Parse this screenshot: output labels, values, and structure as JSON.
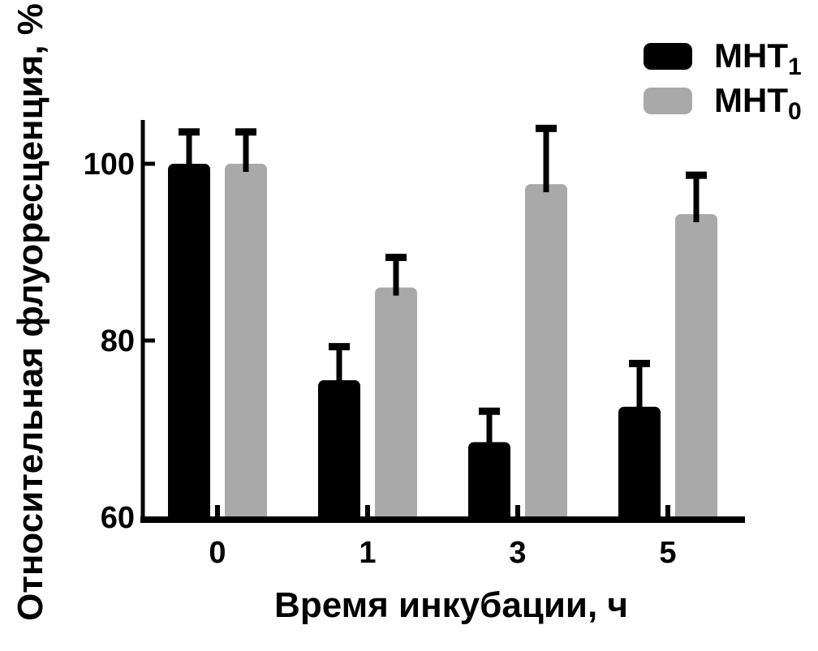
{
  "figure": {
    "background": "#ffffff",
    "axis_color": "#000000"
  },
  "chart_data": {
    "type": "bar",
    "title": "",
    "xlabel": "Время инкубации, ч",
    "ylabel": "Относительная флуоресценция, %",
    "categories": [
      "0",
      "1",
      "3",
      "5"
    ],
    "series": [
      {
        "name": "МНТ1",
        "label_base": "МНТ",
        "label_sub": "1",
        "color": "#000000",
        "values": [
          100,
          75.5,
          68.5,
          72.5
        ],
        "errors": [
          3.6,
          3.8,
          3.5,
          4.9
        ]
      },
      {
        "name": "МНТ0",
        "label_base": "МНТ",
        "label_sub": "0",
        "color": "#a9a9a9",
        "values": [
          100,
          86,
          97.7,
          94.3
        ],
        "errors": [
          3.6,
          3.4,
          6.3,
          4.4
        ]
      }
    ],
    "ylim": [
      60,
      105
    ],
    "yticks": [
      60,
      80,
      100
    ],
    "error_direction": "up",
    "grid": false,
    "legend_position": "top-right"
  }
}
